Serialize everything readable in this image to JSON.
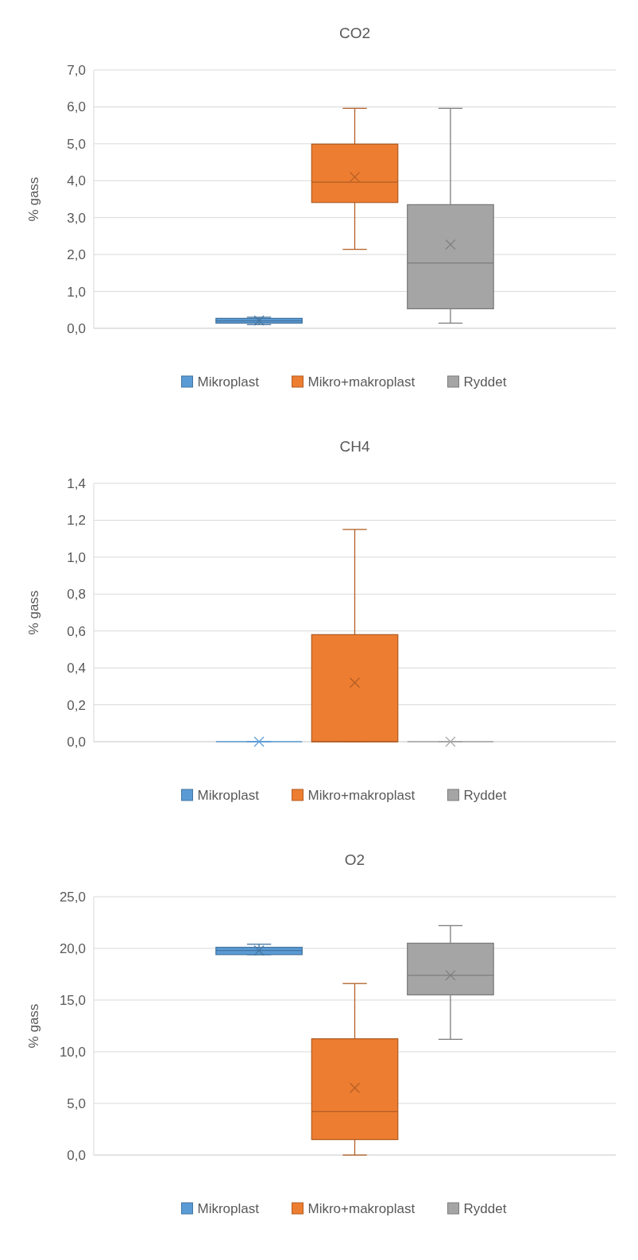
{
  "chart_data": [
    {
      "type": "box",
      "title": "CO2",
      "ylabel": "% gass",
      "categories": [
        null
      ],
      "grid": "y",
      "legend": "bottom",
      "ylim": [
        0,
        7
      ],
      "yticks": [
        {
          "value": 0,
          "label": "0,0"
        },
        {
          "value": 1,
          "label": "1,0"
        },
        {
          "value": 2,
          "label": "2,0"
        },
        {
          "value": 3,
          "label": "3,0"
        },
        {
          "value": 4,
          "label": "4,0"
        },
        {
          "value": 5,
          "label": "5,0"
        },
        {
          "value": 6,
          "label": "6,0"
        },
        {
          "value": 7,
          "label": "7,0"
        }
      ],
      "series": [
        {
          "name": "Mikroplast",
          "color": "#5b9bd5",
          "boxes": [
            {
              "low": 0.1,
              "q1": 0.14,
              "median": 0.2,
              "q3": 0.27,
              "high": 0.3,
              "mean": 0.21
            }
          ]
        },
        {
          "name": "Mikro+makroplast",
          "color": "#ed7d31",
          "boxes": [
            {
              "low": 2.14,
              "q1": 3.41,
              "median": 3.96,
              "q3": 4.99,
              "high": 5.96,
              "mean": 4.1
            }
          ]
        },
        {
          "name": "Ryddet",
          "color": "#a5a5a5",
          "boxes": [
            {
              "low": 0.14,
              "q1": 0.53,
              "median": 1.77,
              "q3": 3.35,
              "high": 5.96,
              "mean": 2.27
            }
          ]
        }
      ]
    },
    {
      "type": "box",
      "title": "CH4",
      "ylabel": "% gass",
      "categories": [
        null
      ],
      "grid": "y",
      "legend": "bottom",
      "ylim": [
        0,
        1.4
      ],
      "yticks": [
        {
          "value": 0,
          "label": "0,0"
        },
        {
          "value": 0.2,
          "label": "0,2"
        },
        {
          "value": 0.4,
          "label": "0,4"
        },
        {
          "value": 0.6,
          "label": "0,6"
        },
        {
          "value": 0.8,
          "label": "0,8"
        },
        {
          "value": 1,
          "label": "1,0"
        },
        {
          "value": 1.2,
          "label": "1,2"
        },
        {
          "value": 1.4,
          "label": "1,4"
        }
      ],
      "series": [
        {
          "name": "Mikroplast",
          "color": "#5b9bd5",
          "boxes": [
            {
              "low": 0,
              "q1": 0,
              "median": 0,
              "q3": 0,
              "high": 0,
              "mean": 0
            }
          ]
        },
        {
          "name": "Mikro+makroplast",
          "color": "#ed7d31",
          "boxes": [
            {
              "low": 0,
              "q1": 0,
              "median": 0,
              "q3": 0.58,
              "high": 1.15,
              "mean": 0.32
            }
          ]
        },
        {
          "name": "Ryddet",
          "color": "#a5a5a5",
          "boxes": [
            {
              "low": 0,
              "q1": 0,
              "median": 0,
              "q3": 0,
              "high": 0,
              "mean": 0
            }
          ]
        }
      ]
    },
    {
      "type": "box",
      "title": "O2",
      "ylabel": "% gass",
      "categories": [
        null
      ],
      "grid": "y",
      "legend": "bottom",
      "ylim": [
        0,
        25
      ],
      "yticks": [
        {
          "value": 0,
          "label": "0,0"
        },
        {
          "value": 5,
          "label": "5,0"
        },
        {
          "value": 10,
          "label": "10,0"
        },
        {
          "value": 15,
          "label": "15,0"
        },
        {
          "value": 20,
          "label": "20,0"
        },
        {
          "value": 25,
          "label": "25,0"
        }
      ],
      "series": [
        {
          "name": "Mikroplast",
          "color": "#5b9bd5",
          "boxes": [
            {
              "low": 19.4,
              "q1": 19.4,
              "median": 19.8,
              "q3": 20.1,
              "high": 20.4,
              "mean": 19.8
            }
          ]
        },
        {
          "name": "Mikro+makroplast",
          "color": "#ed7d31",
          "boxes": [
            {
              "low": 0,
              "q1": 1.5,
              "median": 4.2,
              "q3": 11.25,
              "high": 16.6,
              "mean": 6.5
            }
          ]
        },
        {
          "name": "Ryddet",
          "color": "#a5a5a5",
          "boxes": [
            {
              "low": 11.2,
              "q1": 15.5,
              "median": 17.4,
              "q3": 20.5,
              "high": 22.2,
              "mean": 17.4
            }
          ]
        }
      ]
    }
  ]
}
